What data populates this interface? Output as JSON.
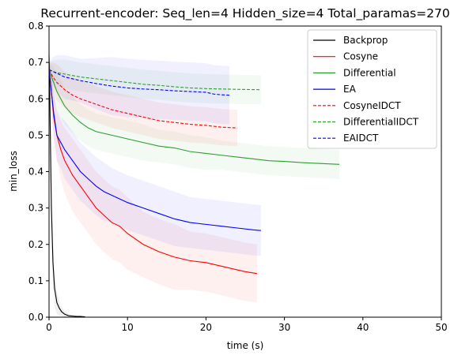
{
  "chart_data": {
    "type": "line",
    "title": "Recurrent-encoder: Seq_len=4 Hidden_size=4 Total_paramas=270",
    "xlabel": "time (s)",
    "ylabel": "min_loss",
    "xlim": [
      0,
      50
    ],
    "ylim": [
      0,
      0.8
    ],
    "xticks": [
      "0",
      "10",
      "20",
      "30",
      "40",
      "50"
    ],
    "yticks": [
      "0.0",
      "0.1",
      "0.2",
      "0.3",
      "0.4",
      "0.5",
      "0.6",
      "0.7",
      "0.8"
    ],
    "grid": false,
    "legend_position": "top-right",
    "series": [
      {
        "name": "Backprop",
        "color": "#000000",
        "dash": false,
        "x": [
          0,
          0.1,
          0.2,
          0.3,
          0.5,
          0.7,
          1.0,
          1.3,
          1.6,
          2.0,
          2.5,
          3.0,
          3.5,
          4.0,
          4.6
        ],
        "y": [
          0.72,
          0.6,
          0.45,
          0.3,
          0.15,
          0.08,
          0.04,
          0.025,
          0.015,
          0.008,
          0.004,
          0.003,
          0.002,
          0.002,
          0.001
        ],
        "band": [
          0.1,
          0.1,
          0.1,
          0.08,
          0.06,
          0.05,
          0.03,
          0.02,
          0.012,
          0.008,
          0.005,
          0.003,
          0.002,
          0.002,
          0.001
        ]
      },
      {
        "name": "Cosyne",
        "color": "#ff0000",
        "dash": false,
        "x": [
          0,
          0.3,
          0.6,
          1.0,
          1.5,
          2.0,
          3.0,
          4.0,
          5.0,
          6.0,
          7.0,
          8.0,
          9.0,
          10.0,
          12.0,
          14.0,
          16.0,
          18.0,
          20.0,
          22.0,
          24.0,
          25.0,
          26.5
        ],
        "y": [
          0.68,
          0.62,
          0.55,
          0.5,
          0.46,
          0.43,
          0.39,
          0.36,
          0.33,
          0.3,
          0.28,
          0.26,
          0.25,
          0.23,
          0.2,
          0.18,
          0.165,
          0.155,
          0.15,
          0.14,
          0.13,
          0.125,
          0.12
        ],
        "band": [
          0.02,
          0.05,
          0.06,
          0.07,
          0.08,
          0.09,
          0.1,
          0.1,
          0.1,
          0.1,
          0.1,
          0.1,
          0.1,
          0.1,
          0.09,
          0.09,
          0.09,
          0.08,
          0.08,
          0.08,
          0.08,
          0.08,
          0.08
        ]
      },
      {
        "name": "Differential",
        "color": "#2ca02c",
        "dash": false,
        "x": [
          0,
          0.5,
          1.0,
          2.0,
          3.0,
          4.0,
          5.0,
          6.0,
          8.0,
          10.0,
          12.0,
          14.0,
          16.0,
          18.0,
          20.0,
          22.0,
          24.0,
          26.0,
          28.0,
          30.0,
          32.0,
          34.0,
          37.0
        ],
        "y": [
          0.68,
          0.65,
          0.62,
          0.58,
          0.555,
          0.535,
          0.52,
          0.51,
          0.5,
          0.49,
          0.48,
          0.47,
          0.465,
          0.455,
          0.45,
          0.445,
          0.44,
          0.435,
          0.43,
          0.428,
          0.425,
          0.423,
          0.42
        ],
        "band": [
          0.02,
          0.04,
          0.05,
          0.05,
          0.05,
          0.05,
          0.05,
          0.05,
          0.05,
          0.05,
          0.05,
          0.045,
          0.045,
          0.045,
          0.045,
          0.04,
          0.04,
          0.04,
          0.04,
          0.04,
          0.04,
          0.04,
          0.04
        ]
      },
      {
        "name": "EA",
        "color": "#0000ff",
        "dash": false,
        "x": [
          0,
          0.3,
          0.6,
          1.0,
          1.5,
          2.0,
          3.0,
          4.0,
          5.0,
          6.0,
          7.0,
          8.0,
          9.0,
          10.0,
          12.0,
          14.0,
          16.0,
          18.0,
          20.0,
          22.0,
          24.0,
          26.0,
          27.0
        ],
        "y": [
          0.68,
          0.62,
          0.56,
          0.5,
          0.48,
          0.46,
          0.43,
          0.4,
          0.38,
          0.36,
          0.345,
          0.335,
          0.325,
          0.315,
          0.3,
          0.285,
          0.27,
          0.26,
          0.255,
          0.25,
          0.245,
          0.24,
          0.238
        ],
        "band": [
          0.02,
          0.05,
          0.06,
          0.07,
          0.07,
          0.08,
          0.08,
          0.08,
          0.08,
          0.08,
          0.08,
          0.075,
          0.075,
          0.075,
          0.075,
          0.075,
          0.075,
          0.07,
          0.07,
          0.07,
          0.07,
          0.07,
          0.07
        ]
      },
      {
        "name": "CosyneIDCT",
        "color": "#ff0000",
        "dash": true,
        "x": [
          0,
          0.5,
          1.0,
          2.0,
          3.0,
          4.0,
          6.0,
          8.0,
          10.0,
          12.0,
          14.0,
          16.0,
          18.0,
          20.0,
          22.0,
          24.0
        ],
        "y": [
          0.68,
          0.66,
          0.645,
          0.625,
          0.61,
          0.6,
          0.585,
          0.57,
          0.56,
          0.55,
          0.54,
          0.535,
          0.53,
          0.527,
          0.522,
          0.52
        ],
        "band": [
          0.02,
          0.04,
          0.05,
          0.05,
          0.05,
          0.05,
          0.05,
          0.05,
          0.05,
          0.05,
          0.05,
          0.05,
          0.05,
          0.05,
          0.05,
          0.05
        ]
      },
      {
        "name": "DifferentialIDCT",
        "color": "#2ca02c",
        "dash": true,
        "x": [
          0,
          0.5,
          1.0,
          2.0,
          4.0,
          6.0,
          8.0,
          10.0,
          12.0,
          14.0,
          16.0,
          18.0,
          20.0,
          22.0,
          24.0,
          27.0
        ],
        "y": [
          0.68,
          0.675,
          0.672,
          0.668,
          0.66,
          0.655,
          0.65,
          0.645,
          0.64,
          0.637,
          0.633,
          0.63,
          0.628,
          0.627,
          0.626,
          0.625
        ],
        "band": [
          0.02,
          0.03,
          0.035,
          0.04,
          0.04,
          0.04,
          0.04,
          0.04,
          0.04,
          0.04,
          0.04,
          0.04,
          0.04,
          0.04,
          0.04,
          0.04
        ]
      },
      {
        "name": "EAIDCT",
        "color": "#0000ff",
        "dash": true,
        "x": [
          0,
          0.5,
          1.0,
          2.0,
          4.0,
          6.0,
          8.0,
          10.0,
          12.0,
          14.0,
          16.0,
          18.0,
          20.0,
          21.0,
          22.0,
          23.0
        ],
        "y": [
          0.68,
          0.675,
          0.67,
          0.66,
          0.65,
          0.642,
          0.635,
          0.63,
          0.627,
          0.625,
          0.622,
          0.62,
          0.618,
          0.613,
          0.611,
          0.61
        ],
        "band": [
          0.02,
          0.04,
          0.05,
          0.06,
          0.06,
          0.07,
          0.08,
          0.08,
          0.08,
          0.08,
          0.08,
          0.08,
          0.08,
          0.08,
          0.08,
          0.08
        ]
      }
    ]
  }
}
